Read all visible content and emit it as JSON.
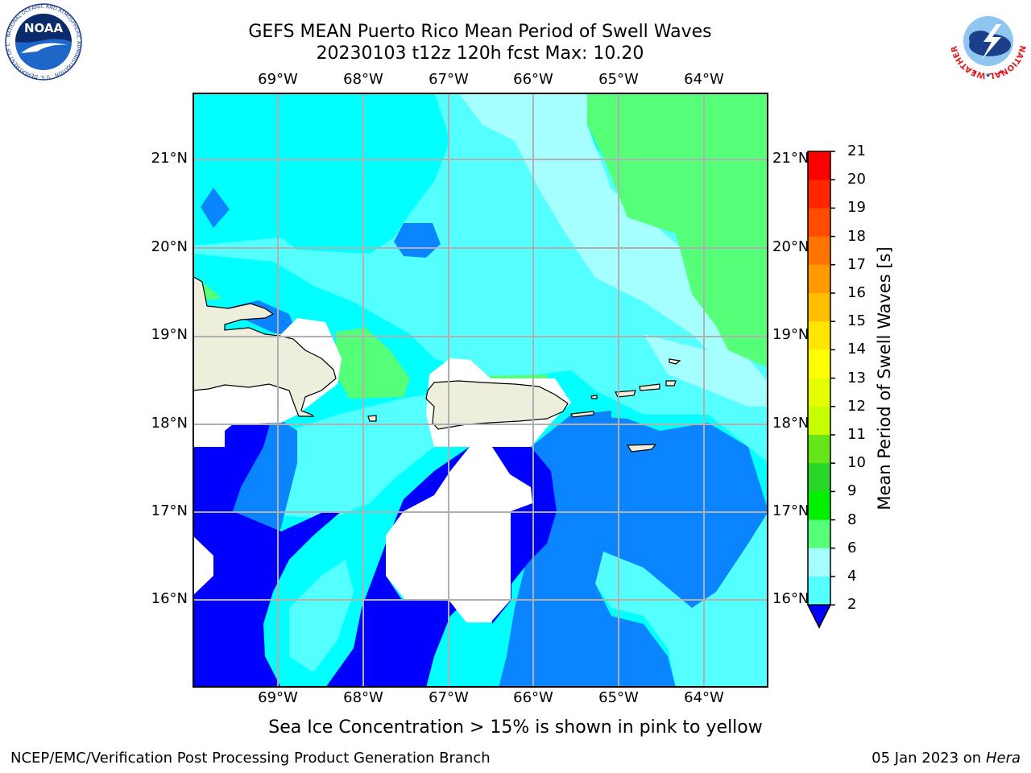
{
  "title": {
    "line1": "GEFS MEAN Puerto Rico Mean Period of Swell Waves",
    "line2": "20230103 t12z 120h fcst   Max: 10.20"
  },
  "axes": {
    "lon_labels": [
      "69°W",
      "68°W",
      "67°W",
      "66°W",
      "65°W",
      "64°W"
    ],
    "lat_labels": [
      "21°N",
      "20°N",
      "19°N",
      "18°N",
      "17°N",
      "16°N"
    ]
  },
  "colorbar": {
    "title": "Mean Period of Swell Waves [s]",
    "ticks": [
      "21",
      "20",
      "19",
      "18",
      "17",
      "16",
      "15",
      "14",
      "13",
      "12",
      "11",
      "10",
      "9",
      "8",
      "6",
      "4",
      "2"
    ],
    "colors": [
      "#ff0000",
      "#ff2600",
      "#ff4d00",
      "#ff7300",
      "#ff9900",
      "#ffbf00",
      "#ffe600",
      "#ffff00",
      "#e6ff00",
      "#c8ff00",
      "#66e619",
      "#29d629",
      "#00f000",
      "#55ff77",
      "#a6ffff",
      "#55ffff",
      "#00ffff",
      "#00a0ff",
      "#0000ff"
    ]
  },
  "legend_colors": {
    "ocean_dark": "#0000ff",
    "ocean_blue": "#0a84ff",
    "ocean_cyan": "#00ffff",
    "ocean_light": "#54ffff",
    "ocean_pale": "#a6ffff",
    "green": "#55ff77",
    "land": "#eeeedc",
    "grid": "#b0b0b0"
  },
  "note": "Sea Ice Concentration > 15% is shown in pink to yellow",
  "footer": {
    "left": "NCEP/EMC/Verification Post Processing Product Generation Branch",
    "date": "05 Jan 2023 on ",
    "host": "Hera"
  },
  "logos": {
    "noaa": "NOAA",
    "noaa_ring": "NATIONAL OCEANIC AND ATMOSPHERIC ADMINISTRATION · U.S. DEPARTMENT OF COMMERCE",
    "nws_ring": "NATIONAL WEATHER SERVICE"
  }
}
